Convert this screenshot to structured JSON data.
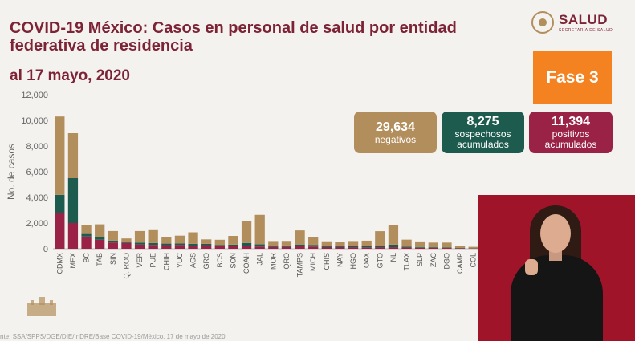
{
  "header": {
    "title": "COVID-19 México: Casos en personal de salud por entidad federativa de residencia",
    "date": "al 17 mayo, 2020"
  },
  "logo": {
    "name": "SALUD",
    "subtitle": "SECRETARÍA DE SALUD"
  },
  "phase_label": "Fase 3",
  "cards": {
    "negativos": {
      "value": "29,634",
      "label": "negativos"
    },
    "sospechosos": {
      "value": "8,275",
      "label": "sospechosos acumulados"
    },
    "positivos": {
      "value": "11,394",
      "label": "positivos acumulados"
    }
  },
  "footer": "nte: SSA/SPPS/DGE/DIE/InDRE/Base COVID-19/México, 17 de mayo de 2020",
  "colors": {
    "positivos": "#9b2247",
    "sospechosos": "#1e5b4f",
    "negativos": "#b38e5d",
    "title": "#7c2335"
  },
  "chart_data": {
    "type": "bar",
    "stacked": true,
    "ylabel": "No. de casos",
    "ylim": [
      0,
      12000
    ],
    "yticks": [
      "0",
      "2,000",
      "4,000",
      "6,000",
      "8,000",
      "10,000",
      "12,000"
    ],
    "categories": [
      "CDMX",
      "MEX",
      "BC",
      "TAB",
      "SIN",
      "Q. ROO",
      "VER",
      "PUE",
      "CHIH",
      "YUC",
      "AGS",
      "GRO",
      "BCS",
      "SON",
      "COAH",
      "JAL",
      "MOR",
      "QRO",
      "TAMPS",
      "MICH",
      "CHIS",
      "NAY",
      "HGO",
      "OAX",
      "GTO",
      "NL",
      "TLAX",
      "SLP",
      "ZAC",
      "DGO",
      "CAMP",
      "COL"
    ],
    "series": [
      {
        "key": "positivos",
        "values": [
          2800,
          2000,
          950,
          700,
          480,
          450,
          330,
          300,
          280,
          300,
          250,
          280,
          220,
          220,
          200,
          170,
          150,
          150,
          200,
          170,
          130,
          130,
          120,
          110,
          120,
          120,
          100,
          70,
          70,
          60,
          40,
          20
        ]
      },
      {
        "key": "sospechosos",
        "values": [
          1400,
          3500,
          200,
          200,
          150,
          100,
          150,
          150,
          120,
          120,
          130,
          100,
          80,
          100,
          250,
          170,
          100,
          110,
          130,
          130,
          70,
          80,
          80,
          90,
          100,
          200,
          60,
          50,
          50,
          40,
          20,
          10
        ]
      },
      {
        "key": "negativos",
        "values": [
          6100,
          3500,
          700,
          1000,
          750,
          250,
          900,
          1000,
          500,
          600,
          900,
          350,
          400,
          680,
          1700,
          2300,
          350,
          350,
          1100,
          600,
          380,
          330,
          400,
          430,
          1150,
          1500,
          550,
          450,
          360,
          380,
          140,
          120
        ]
      }
    ]
  }
}
